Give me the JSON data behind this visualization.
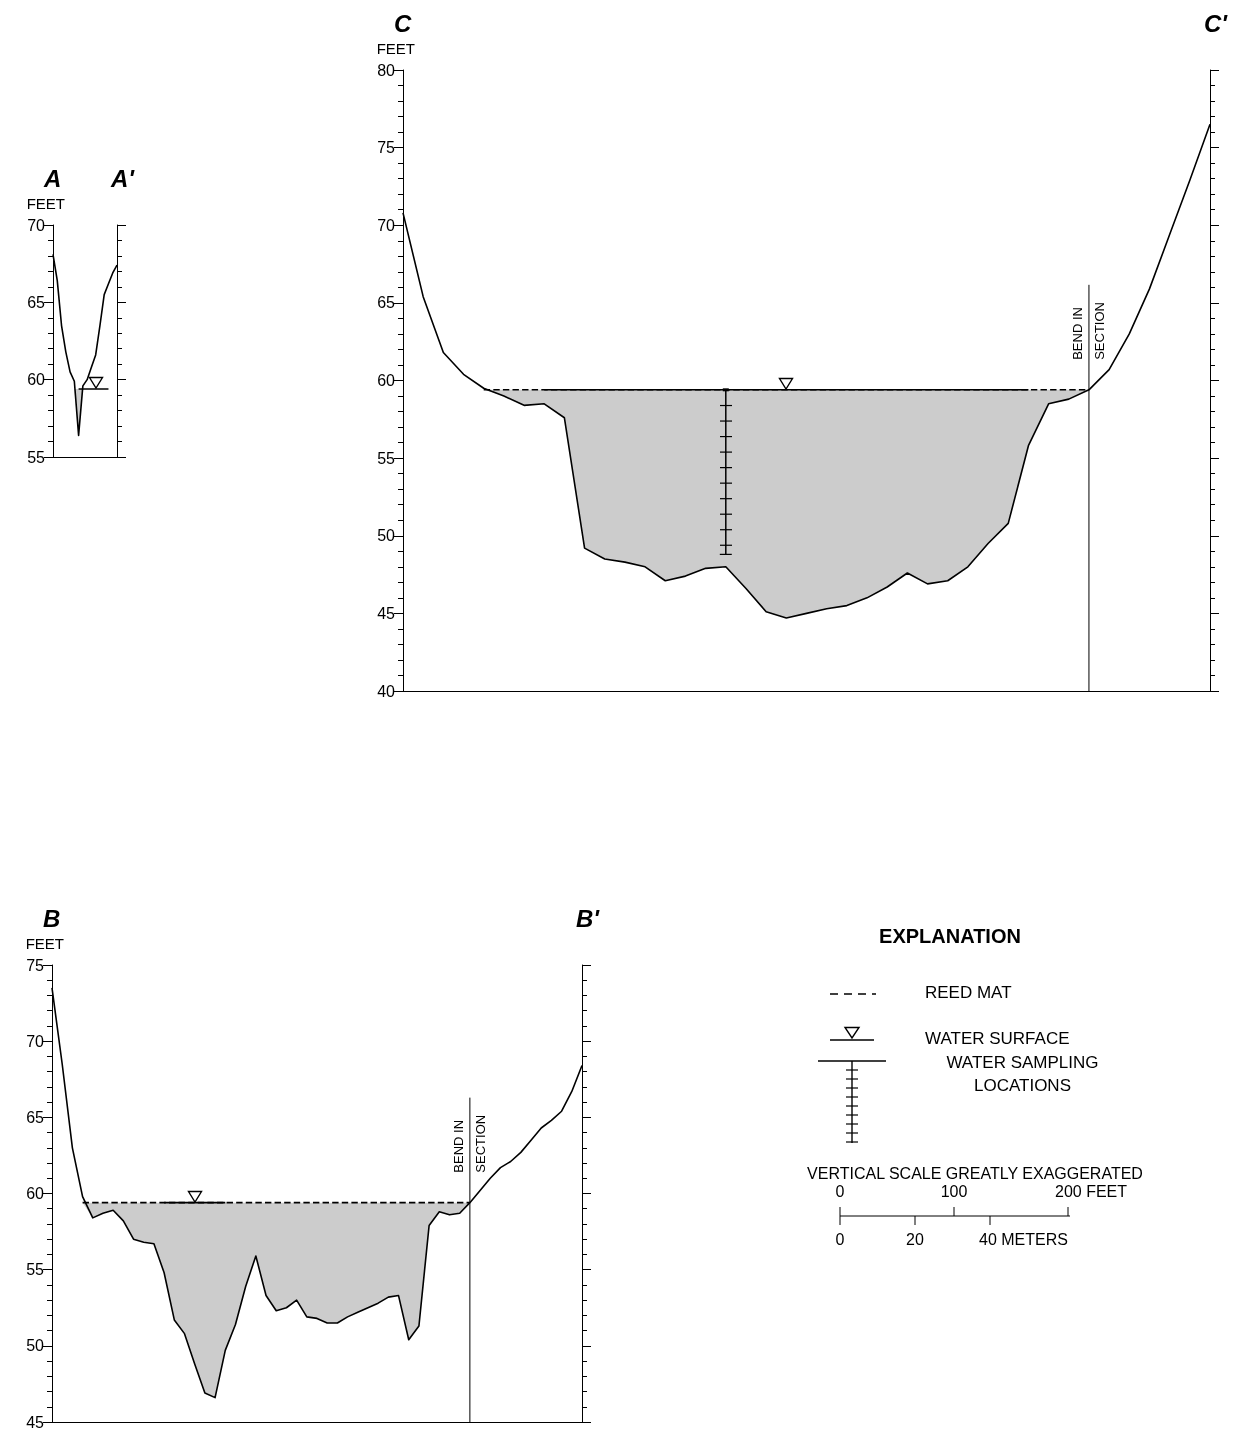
{
  "chart_data": [
    {
      "type": "line",
      "title": "A",
      "subtitle": "A'",
      "ylabel": "FEET",
      "ylim": [
        55,
        70
      ],
      "yticks": [
        55,
        60,
        65,
        70
      ],
      "tick_labels": "y",
      "categories": [
        null,
        null,
        null,
        null,
        null,
        null,
        null,
        null,
        null,
        null,
        null,
        null,
        null,
        null,
        null,
        null
      ],
      "series": [
        {
          "type": "line",
          "color": "#000000",
          "values": [
            68.1,
            66.4,
            63.5,
            61.8,
            60.5,
            59.9,
            56.4,
            59.6,
            60.0,
            60.8,
            61.6,
            63.5,
            65.5,
            66.2,
            66.9,
            67.4
          ]
        },
        {
          "type": "line",
          "color": "#000000",
          "line_style": "solid",
          "values": [
            null,
            null,
            null,
            null,
            null,
            null,
            59.4,
            59.4,
            59.4,
            59.4,
            59.4,
            59.4,
            59.4,
            59.4,
            null,
            null
          ],
          "lower": [
            null,
            null,
            null,
            null,
            null,
            59.4,
            56.4,
            59.4,
            null,
            null,
            null,
            null,
            null,
            null,
            null,
            null
          ],
          "upper": [
            null,
            null,
            null,
            null,
            null,
            59.4,
            59.4,
            59.4,
            null,
            null,
            null,
            null,
            null,
            null,
            null,
            null
          ]
        }
      ]
    },
    {
      "type": "line",
      "title": "C",
      "subtitle": "C'",
      "ylabel": "FEET",
      "ylim": [
        40,
        80
      ],
      "yticks": [
        40,
        45,
        50,
        55,
        60,
        65,
        70,
        75,
        80
      ],
      "tick_labels": "y",
      "categories": [
        null,
        null,
        null,
        null,
        null,
        null,
        null,
        null,
        null,
        null,
        null,
        null,
        null,
        null,
        null,
        null,
        null,
        null,
        null,
        null,
        null,
        null,
        null,
        null,
        null,
        null,
        null,
        null,
        null,
        null,
        null,
        null,
        null,
        null,
        null,
        null,
        null,
        null,
        null,
        null,
        null
      ],
      "series": [
        {
          "type": "line",
          "color": "#000000",
          "values": [
            70.8,
            65.4,
            61.8,
            60.4,
            59.5,
            59.0,
            58.4,
            58.5,
            57.6,
            49.2,
            48.5,
            48.3,
            48.0,
            47.1,
            47.4,
            47.9,
            48.0,
            46.6,
            45.1,
            44.7,
            45.0,
            45.3,
            45.5,
            46.0,
            46.7,
            47.6,
            46.9,
            47.1,
            48.0,
            49.5,
            50.8,
            55.8,
            58.5,
            58.8,
            59.4,
            60.7,
            63.0,
            65.9,
            69.4,
            72.9,
            76.5
          ]
        },
        {
          "type": "line",
          "color": "#000000",
          "line_style": "dashed",
          "values": [
            null,
            null,
            null,
            null,
            59.4,
            59.4,
            59.4,
            59.4,
            59.4,
            59.4,
            59.4,
            59.4,
            59.4,
            59.4,
            59.4,
            59.4,
            59.4,
            59.4,
            59.4,
            59.4,
            59.4,
            59.4,
            59.4,
            59.4,
            59.4,
            59.4,
            59.4,
            59.4,
            59.4,
            59.4,
            59.4,
            59.4,
            59.4,
            59.4,
            59.4,
            null,
            null,
            null,
            null,
            null,
            null
          ],
          "lower": [
            null,
            null,
            null,
            null,
            59.4,
            59.0,
            58.4,
            58.5,
            57.6,
            49.2,
            48.5,
            48.3,
            48.0,
            47.1,
            47.4,
            47.9,
            48.0,
            46.6,
            45.1,
            44.7,
            45.0,
            45.3,
            45.5,
            46.0,
            46.7,
            47.6,
            46.9,
            47.1,
            48.0,
            49.5,
            50.8,
            55.8,
            58.5,
            58.8,
            59.4,
            null,
            null,
            null,
            null,
            null,
            null
          ],
          "upper": [
            null,
            null,
            null,
            null,
            59.4,
            59.4,
            59.4,
            59.4,
            59.4,
            59.4,
            59.4,
            59.4,
            59.4,
            59.4,
            59.4,
            59.4,
            59.4,
            59.4,
            59.4,
            59.4,
            59.4,
            59.4,
            59.4,
            59.4,
            59.4,
            59.4,
            59.4,
            59.4,
            59.4,
            59.4,
            59.4,
            59.4,
            59.4,
            59.4,
            59.4,
            null,
            null,
            null,
            null,
            null,
            null
          ]
        },
        {
          "type": "line",
          "color": "#000000",
          "line_style": "solid",
          "values": [
            null,
            null,
            null,
            null,
            null,
            null,
            null,
            59.4,
            59.4,
            59.4,
            59.4,
            59.4,
            59.4,
            59.4,
            59.4,
            59.4,
            59.4,
            59.4,
            59.4,
            59.4,
            59.4,
            59.4,
            59.4,
            59.4,
            59.4,
            59.4,
            59.4,
            59.4,
            59.4,
            59.4,
            59.4,
            59.4,
            null,
            null,
            null,
            null,
            null,
            null,
            null,
            null,
            null
          ]
        },
        {
          "type": "scatter",
          "color": "#000000",
          "values": [
            null,
            null,
            null,
            null,
            null,
            null,
            null,
            null,
            null,
            null,
            null,
            null,
            null,
            null,
            null,
            null,
            59.4,
            null,
            null,
            null,
            null,
            null,
            null,
            null,
            null,
            null,
            null,
            null,
            null,
            null,
            null,
            null,
            null,
            null,
            null,
            null,
            null,
            null,
            null,
            null,
            null
          ],
          "errors": [
            null,
            null,
            null,
            null,
            null,
            null,
            null,
            null,
            null,
            null,
            null,
            null,
            null,
            null,
            null,
            null,
            [
              48.8,
              59.4
            ],
            null,
            null,
            null,
            null,
            null,
            null,
            null,
            null,
            null,
            null,
            null,
            null,
            null,
            null,
            null,
            null,
            null,
            null,
            null,
            null,
            null,
            null,
            null,
            null
          ]
        }
      ],
      "annotations": [
        "BEND IN SECTION"
      ]
    },
    {
      "type": "line",
      "title": "B",
      "subtitle": "B'",
      "ylabel": "FEET",
      "ylim": [
        45,
        75
      ],
      "yticks": [
        45,
        50,
        55,
        60,
        65,
        70,
        75
      ],
      "tick_labels": "y",
      "categories": [
        null,
        null,
        null,
        null,
        null,
        null,
        null,
        null,
        null,
        null,
        null,
        null,
        null,
        null,
        null,
        null,
        null,
        null,
        null,
        null,
        null,
        null,
        null,
        null,
        null,
        null,
        null,
        null,
        null,
        null,
        null,
        null,
        null,
        null,
        null,
        null,
        null,
        null,
        null,
        null,
        null,
        null,
        null,
        null,
        null,
        null,
        null,
        null,
        null,
        null,
        null,
        null,
        null
      ],
      "series": [
        {
          "type": "line",
          "color": "#000000",
          "values": [
            73.5,
            68.5,
            63.0,
            59.8,
            58.4,
            58.7,
            58.9,
            58.2,
            57.0,
            56.8,
            56.7,
            54.8,
            51.7,
            50.8,
            48.8,
            46.9,
            46.6,
            49.7,
            51.4,
            53.9,
            55.9,
            53.3,
            52.3,
            52.5,
            53.0,
            51.9,
            51.8,
            51.5,
            51.5,
            51.9,
            52.2,
            52.5,
            52.8,
            53.2,
            53.3,
            50.4,
            51.3,
            57.9,
            58.8,
            58.6,
            58.7,
            59.4,
            60.2,
            61.0,
            61.7,
            62.1,
            62.7,
            63.5,
            64.3,
            64.8,
            65.4,
            66.7,
            68.4
          ]
        },
        {
          "type": "line",
          "color": "#000000",
          "line_style": "dashed",
          "values": [
            null,
            null,
            null,
            59.4,
            59.4,
            59.4,
            59.4,
            59.4,
            59.4,
            59.4,
            59.4,
            59.4,
            59.4,
            59.4,
            59.4,
            59.4,
            59.4,
            59.4,
            59.4,
            59.4,
            59.4,
            59.4,
            59.4,
            59.4,
            59.4,
            59.4,
            59.4,
            59.4,
            59.4,
            59.4,
            59.4,
            59.4,
            59.4,
            59.4,
            59.4,
            59.4,
            59.4,
            59.4,
            59.4,
            59.4,
            59.4,
            59.4,
            null,
            null,
            null,
            null,
            null,
            null,
            null,
            null,
            null,
            null,
            null
          ],
          "lower": [
            null,
            null,
            null,
            59.4,
            58.4,
            58.7,
            58.9,
            58.2,
            57.0,
            56.8,
            56.7,
            54.8,
            51.7,
            50.8,
            48.8,
            46.9,
            46.6,
            49.7,
            51.4,
            53.9,
            55.9,
            53.3,
            52.3,
            52.5,
            53.0,
            51.9,
            51.8,
            51.5,
            51.5,
            51.9,
            52.2,
            52.5,
            52.8,
            53.2,
            53.3,
            50.4,
            51.3,
            57.9,
            58.8,
            58.6,
            58.7,
            59.4,
            null,
            null,
            null,
            null,
            null,
            null,
            null,
            null,
            null,
            null,
            null
          ],
          "upper": [
            null,
            null,
            null,
            59.4,
            59.4,
            59.4,
            59.4,
            59.4,
            59.4,
            59.4,
            59.4,
            59.4,
            59.4,
            59.4,
            59.4,
            59.4,
            59.4,
            59.4,
            59.4,
            59.4,
            59.4,
            59.4,
            59.4,
            59.4,
            59.4,
            59.4,
            59.4,
            59.4,
            59.4,
            59.4,
            59.4,
            59.4,
            59.4,
            59.4,
            59.4,
            59.4,
            59.4,
            59.4,
            59.4,
            59.4,
            59.4,
            59.4,
            null,
            null,
            null,
            null,
            null,
            null,
            null,
            null,
            null,
            null,
            null
          ]
        },
        {
          "type": "line",
          "color": "#000000",
          "line_style": "solid",
          "values": [
            null,
            null,
            null,
            null,
            null,
            null,
            null,
            null,
            null,
            null,
            null,
            59.4,
            59.4,
            59.4,
            59.4,
            59.4,
            59.4,
            59.4,
            null,
            null,
            null,
            null,
            null,
            null,
            null,
            null,
            null,
            null,
            null,
            null,
            null,
            null,
            null,
            null,
            null,
            null,
            null,
            null,
            null,
            null,
            null,
            null,
            null,
            null,
            null,
            null,
            null,
            null,
            null,
            null,
            null,
            null,
            null
          ]
        }
      ],
      "annotations": [
        "BEND IN SECTION"
      ]
    },
    {
      "type": "other",
      "title": "EXPLANATION",
      "annotations": [
        "REED MAT",
        "WATER SURFACE",
        "WATER SAMPLING LOCATIONS",
        "VERTICAL SCALE GREATLY EXAGGERATED",
        "0",
        "100",
        "200 FEET",
        "0",
        "20",
        "40 METERS"
      ]
    }
  ]
}
